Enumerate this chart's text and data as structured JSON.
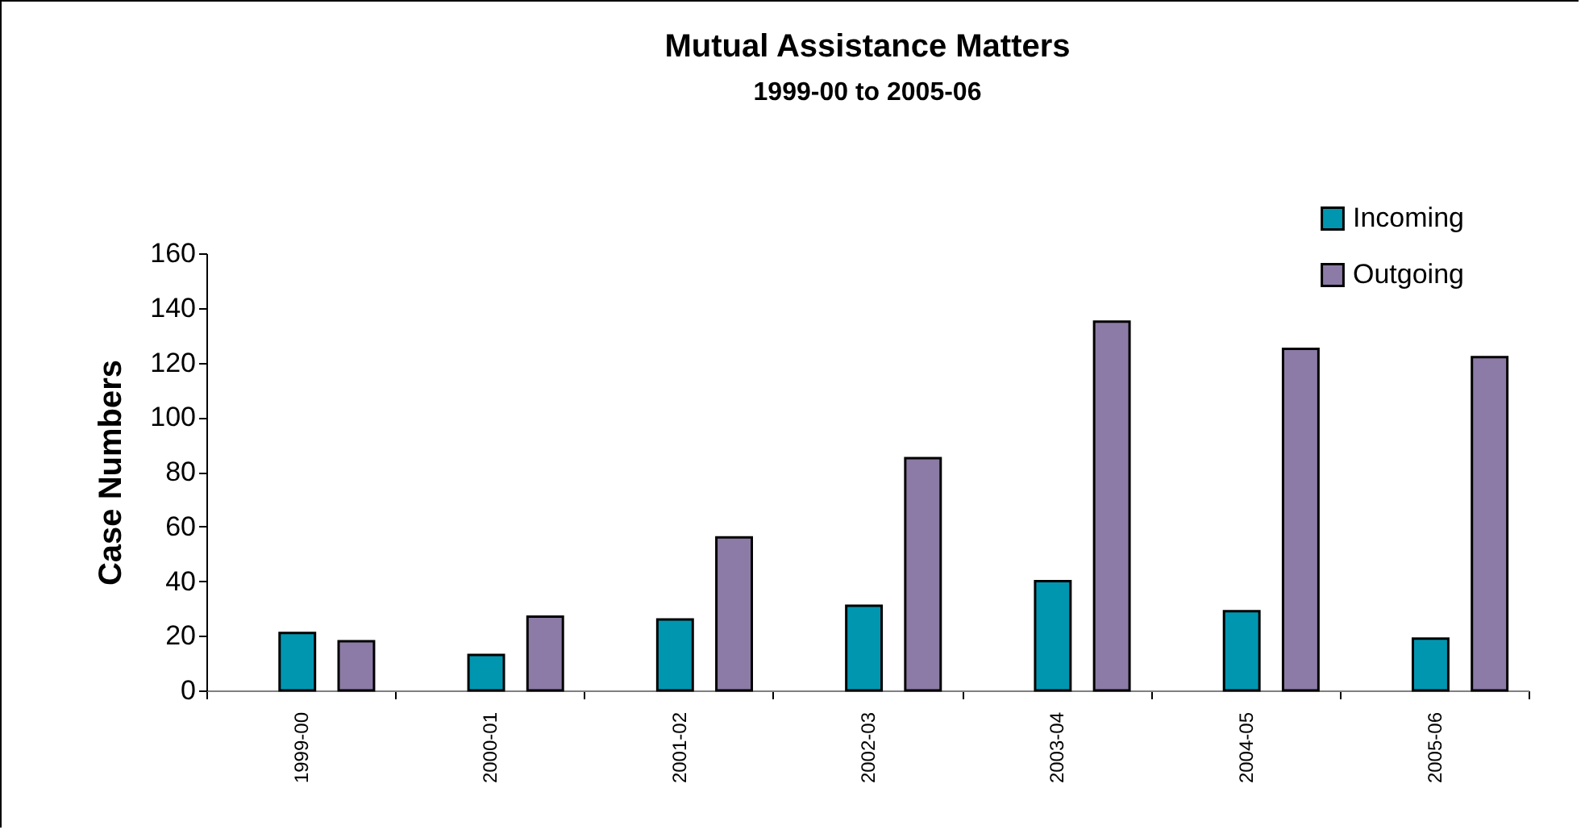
{
  "chart_data": {
    "type": "bar",
    "title": "Mutual Assistance Matters",
    "subtitle": "1999-00 to 2005-06",
    "ylabel": "Case Numbers",
    "categories": [
      "1999-00",
      "2000-01",
      "2001-02",
      "2002-03",
      "2003-04",
      "2004-05",
      "2005-06"
    ],
    "series": [
      {
        "name": "Incoming",
        "color": "#0096b0",
        "values": [
          21,
          13,
          26,
          31,
          40,
          29,
          19
        ]
      },
      {
        "name": "Outgoing",
        "color": "#8c7ba6",
        "values": [
          18,
          27,
          56,
          85,
          135,
          125,
          122
        ]
      }
    ],
    "ylim": [
      0,
      160
    ],
    "yticks": [
      0,
      20,
      40,
      60,
      80,
      100,
      120,
      140,
      160
    ],
    "grid": false,
    "legend": "top right"
  }
}
